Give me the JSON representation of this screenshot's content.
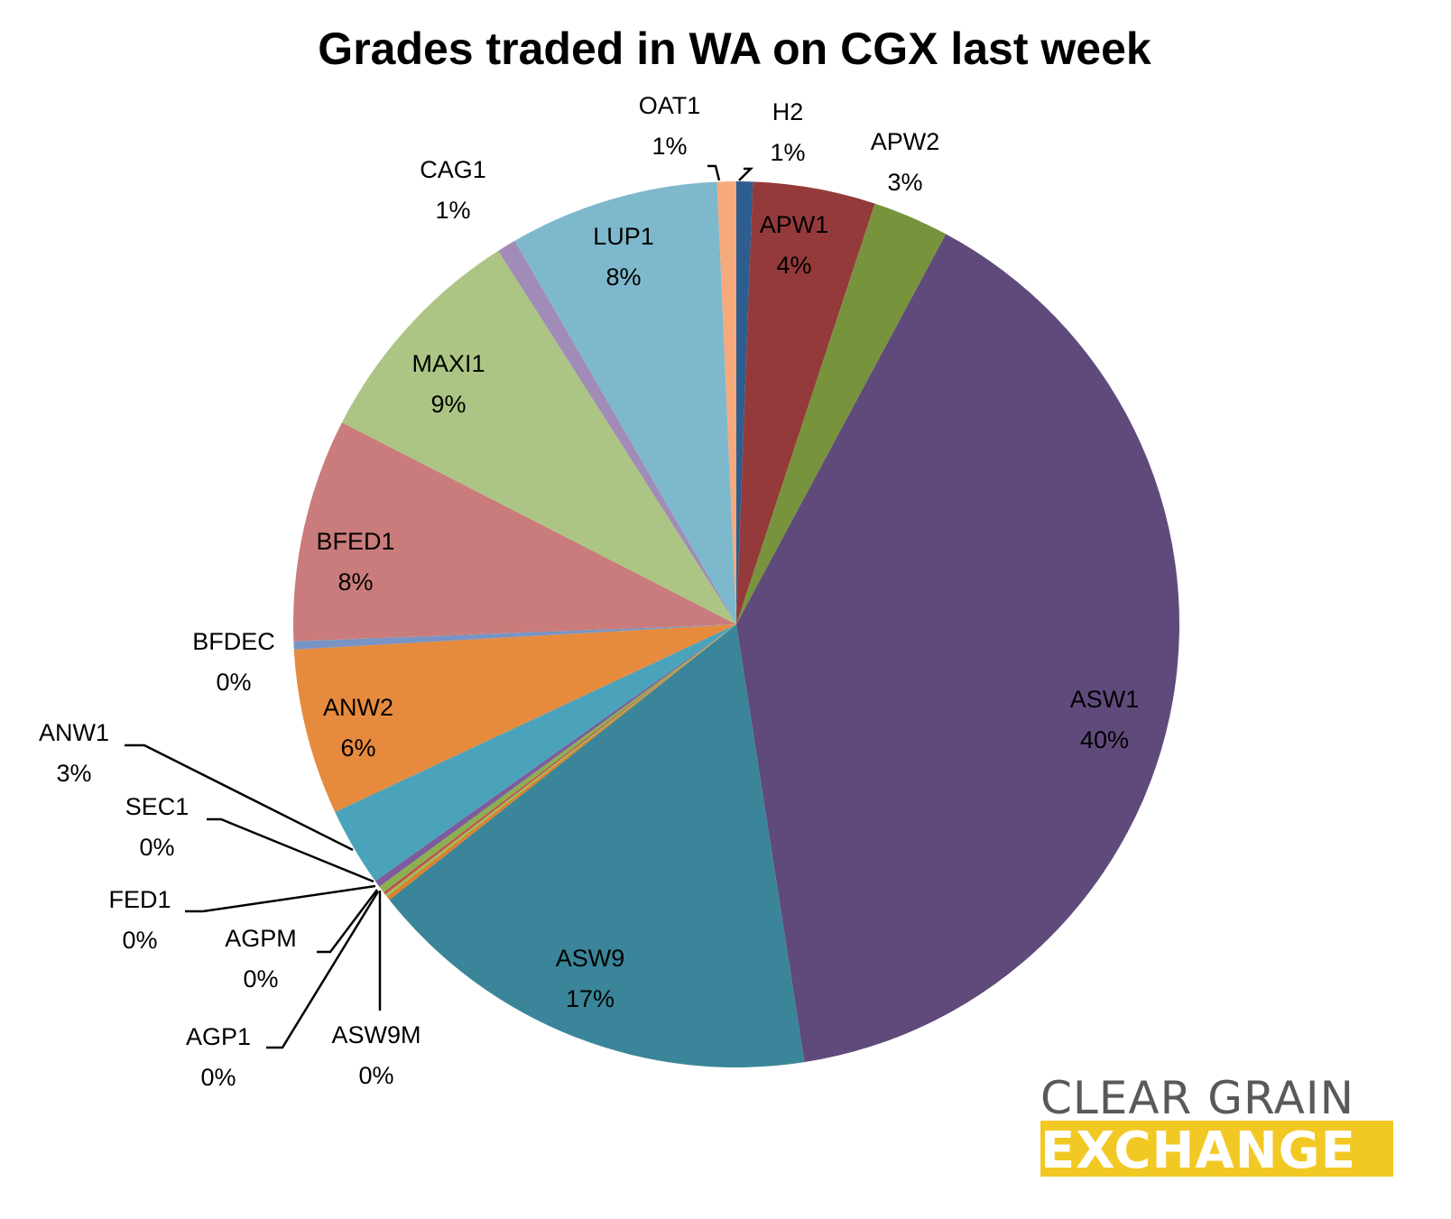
{
  "chart_data": {
    "type": "pie",
    "title": "Grades traded in WA on CGX last week",
    "slices": [
      {
        "label": "H2",
        "value": 0.6,
        "display": "1%",
        "color": "#2e5d8f"
      },
      {
        "label": "APW1",
        "value": 4.5,
        "display": "4%",
        "color": "#943a3a"
      },
      {
        "label": "APW2",
        "value": 2.8,
        "display": "3%",
        "color": "#77933c"
      },
      {
        "label": "ASW1",
        "value": 40.0,
        "display": "40%",
        "color": "#604a7b"
      },
      {
        "label": "ASW9",
        "value": 16.9,
        "display": "17%",
        "color": "#3a8599"
      },
      {
        "label": "ASW9M",
        "value": 0.15,
        "display": "0%",
        "color": "#d9822b"
      },
      {
        "label": "AGP1",
        "value": 0.1,
        "display": "0%",
        "color": "#9bbb59"
      },
      {
        "label": "AGPM",
        "value": 0.1,
        "display": "0%",
        "color": "#c0504d"
      },
      {
        "label": "FED1",
        "value": 0.25,
        "display": "0%",
        "color": "#8ab04f"
      },
      {
        "label": "SEC1",
        "value": 0.25,
        "display": "0%",
        "color": "#7c5c9c"
      },
      {
        "label": "ANW1",
        "value": 2.9,
        "display": "3%",
        "color": "#4aa3bb"
      },
      {
        "label": "ANW2",
        "value": 6.1,
        "display": "6%",
        "color": "#e68b3e"
      },
      {
        "label": "BFDEC",
        "value": 0.3,
        "display": "0%",
        "color": "#7894c4"
      },
      {
        "label": "BFED1",
        "value": 8.2,
        "display": "8%",
        "color": "#c97c7b"
      },
      {
        "label": "MAXI1",
        "value": 8.5,
        "display": "9%",
        "color": "#acc584"
      },
      {
        "label": "CAG1",
        "value": 0.7,
        "display": "1%",
        "color": "#a08cb7"
      },
      {
        "label": "LUP1",
        "value": 7.7,
        "display": "8%",
        "color": "#7eb8cc"
      },
      {
        "label": "OAT1",
        "value": 0.7,
        "display": "1%",
        "color": "#f6a97b"
      }
    ]
  },
  "logo": {
    "line1": "CLEAR GRAIN",
    "line2": "EXCHANGE",
    "line1_color": "#595959",
    "line2_background": "#f2c924"
  }
}
